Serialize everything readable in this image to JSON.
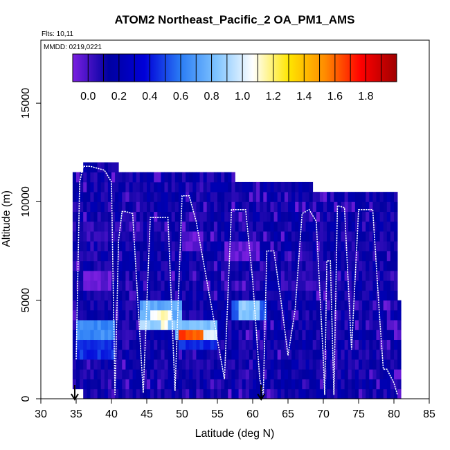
{
  "chart_data": {
    "type": "heatmap",
    "title": "ATOM2 Northeast_Pacific_2 OA_PM1_AMS",
    "flights_label": "Flts: 10,11",
    "dates_label": "MMDD: 0219,0221",
    "xlabel": "Latitude (deg N)",
    "ylabel": "Altitude (m)",
    "xlim": [
      30,
      85
    ],
    "ylim": [
      0,
      18200
    ],
    "x_ticks": [
      "30",
      "35",
      "40",
      "45",
      "50",
      "55",
      "60",
      "65",
      "70",
      "75",
      "80",
      "85"
    ],
    "y_ticks": [
      "0",
      "5000",
      "10000",
      "15000"
    ],
    "colorbar": {
      "range": [
        -0.1,
        2.0
      ],
      "ticks": [
        "0.0",
        "0.2",
        "0.4",
        "0.6",
        "0.8",
        "1.0",
        "1.2",
        "1.4",
        "1.6",
        "1.8"
      ],
      "colors": [
        "#7a1fe0",
        "#0000a0",
        "#0000d8",
        "#2a7cf5",
        "#7fc4ff",
        "#ffffff",
        "#ffe600",
        "#ff8c00",
        "#ff0000",
        "#a00000"
      ]
    },
    "grid": false,
    "coverage": [
      {
        "lat": [
          34.5,
          36
        ],
        "alt": [
          500,
          11500
        ]
      },
      {
        "lat": [
          36,
          41
        ],
        "alt": [
          0,
          11800
        ]
      },
      {
        "lat": [
          41,
          50
        ],
        "alt": [
          0,
          11500
        ]
      },
      {
        "lat": [
          50,
          57.5
        ],
        "alt": [
          0,
          11100
        ]
      },
      {
        "lat": [
          57.5,
          68.5
        ],
        "alt": [
          0,
          10800
        ]
      },
      {
        "lat": [
          68.5,
          76
        ],
        "alt": [
          0,
          10400
        ]
      },
      {
        "lat": [
          76,
          80.5
        ],
        "alt": [
          0,
          10100
        ]
      },
      {
        "lat": [
          80.5,
          81
        ],
        "alt": [
          0,
          5000
        ]
      }
    ],
    "features": [
      {
        "lat": [
          35,
          40.5
        ],
        "alt": [
          3000,
          4000
        ],
        "value": 0.65
      },
      {
        "lat": [
          35,
          40.5
        ],
        "alt": [
          2000,
          3000
        ],
        "value": 0.45
      },
      {
        "lat": [
          36,
          40
        ],
        "alt": [
          5500,
          6500
        ],
        "value": -0.05
      },
      {
        "lat": [
          36,
          42
        ],
        "alt": [
          8000,
          9000
        ],
        "value": 0.05
      },
      {
        "lat": [
          44,
          50
        ],
        "alt": [
          4000,
          5000
        ],
        "value": 0.75
      },
      {
        "lat": [
          45.5,
          48.5
        ],
        "alt": [
          3500,
          4500
        ],
        "value": 1.1
      },
      {
        "lat": [
          44,
          47
        ],
        "alt": [
          3500,
          4000
        ],
        "value": 0.9
      },
      {
        "lat": [
          48,
          55
        ],
        "alt": [
          3500,
          4000
        ],
        "value": 0.85
      },
      {
        "lat": [
          49,
          55
        ],
        "alt": [
          3000,
          3500
        ],
        "value": 0.75
      },
      {
        "lat": [
          49.5,
          53
        ],
        "alt": [
          3000,
          3500
        ],
        "value": 1.65
      },
      {
        "lat": [
          53,
          55
        ],
        "alt": [
          3000,
          3500
        ],
        "value": 1.05
      },
      {
        "lat": [
          49.5,
          55
        ],
        "alt": [
          2500,
          3000
        ],
        "value": 0.45
      },
      {
        "lat": [
          57,
          62
        ],
        "alt": [
          4000,
          5000
        ],
        "value": 0.55
      },
      {
        "lat": [
          58,
          61
        ],
        "alt": [
          4200,
          4800
        ],
        "value": 0.85
      },
      {
        "lat": [
          50,
          53
        ],
        "alt": [
          7500,
          8500
        ],
        "value": -0.05
      },
      {
        "lat": [
          56,
          61
        ],
        "alt": [
          7000,
          8000
        ],
        "value": -0.05
      },
      {
        "lat": [
          64,
          70
        ],
        "alt": [
          5500,
          6500
        ],
        "value": 0.05
      }
    ],
    "flight_track": {
      "lat": [
        35,
        35.5,
        36,
        37,
        38,
        39,
        40,
        40.5,
        41,
        41.5,
        42,
        43,
        44.5,
        45.5,
        46.5,
        48,
        49,
        50,
        51,
        52,
        53,
        54,
        55.5,
        56,
        57,
        58,
        59,
        60,
        61,
        61.5,
        62,
        63,
        64,
        65,
        66,
        67,
        68,
        69,
        70,
        70.2,
        70.5,
        71,
        71.5,
        72,
        73,
        74,
        75,
        76,
        77,
        78,
        78.5,
        79,
        80,
        80.5
      ],
      "alt": [
        2000,
        11000,
        11800,
        11800,
        11700,
        11600,
        11000,
        200,
        8000,
        9500,
        9500,
        9400,
        300,
        9200,
        9200,
        9200,
        400,
        10300,
        10300,
        9000,
        7000,
        5000,
        2000,
        1000,
        9600,
        9600,
        9600,
        6000,
        1000,
        200,
        7500,
        7500,
        5000,
        2200,
        4500,
        9400,
        9600,
        9000,
        2000,
        200,
        7000,
        7000,
        200,
        9800,
        9700,
        2500,
        9600,
        9600,
        9600,
        4000,
        1500,
        1500,
        800,
        200
      ]
    },
    "markers_lat": [
      34.8,
      61.2
    ]
  }
}
